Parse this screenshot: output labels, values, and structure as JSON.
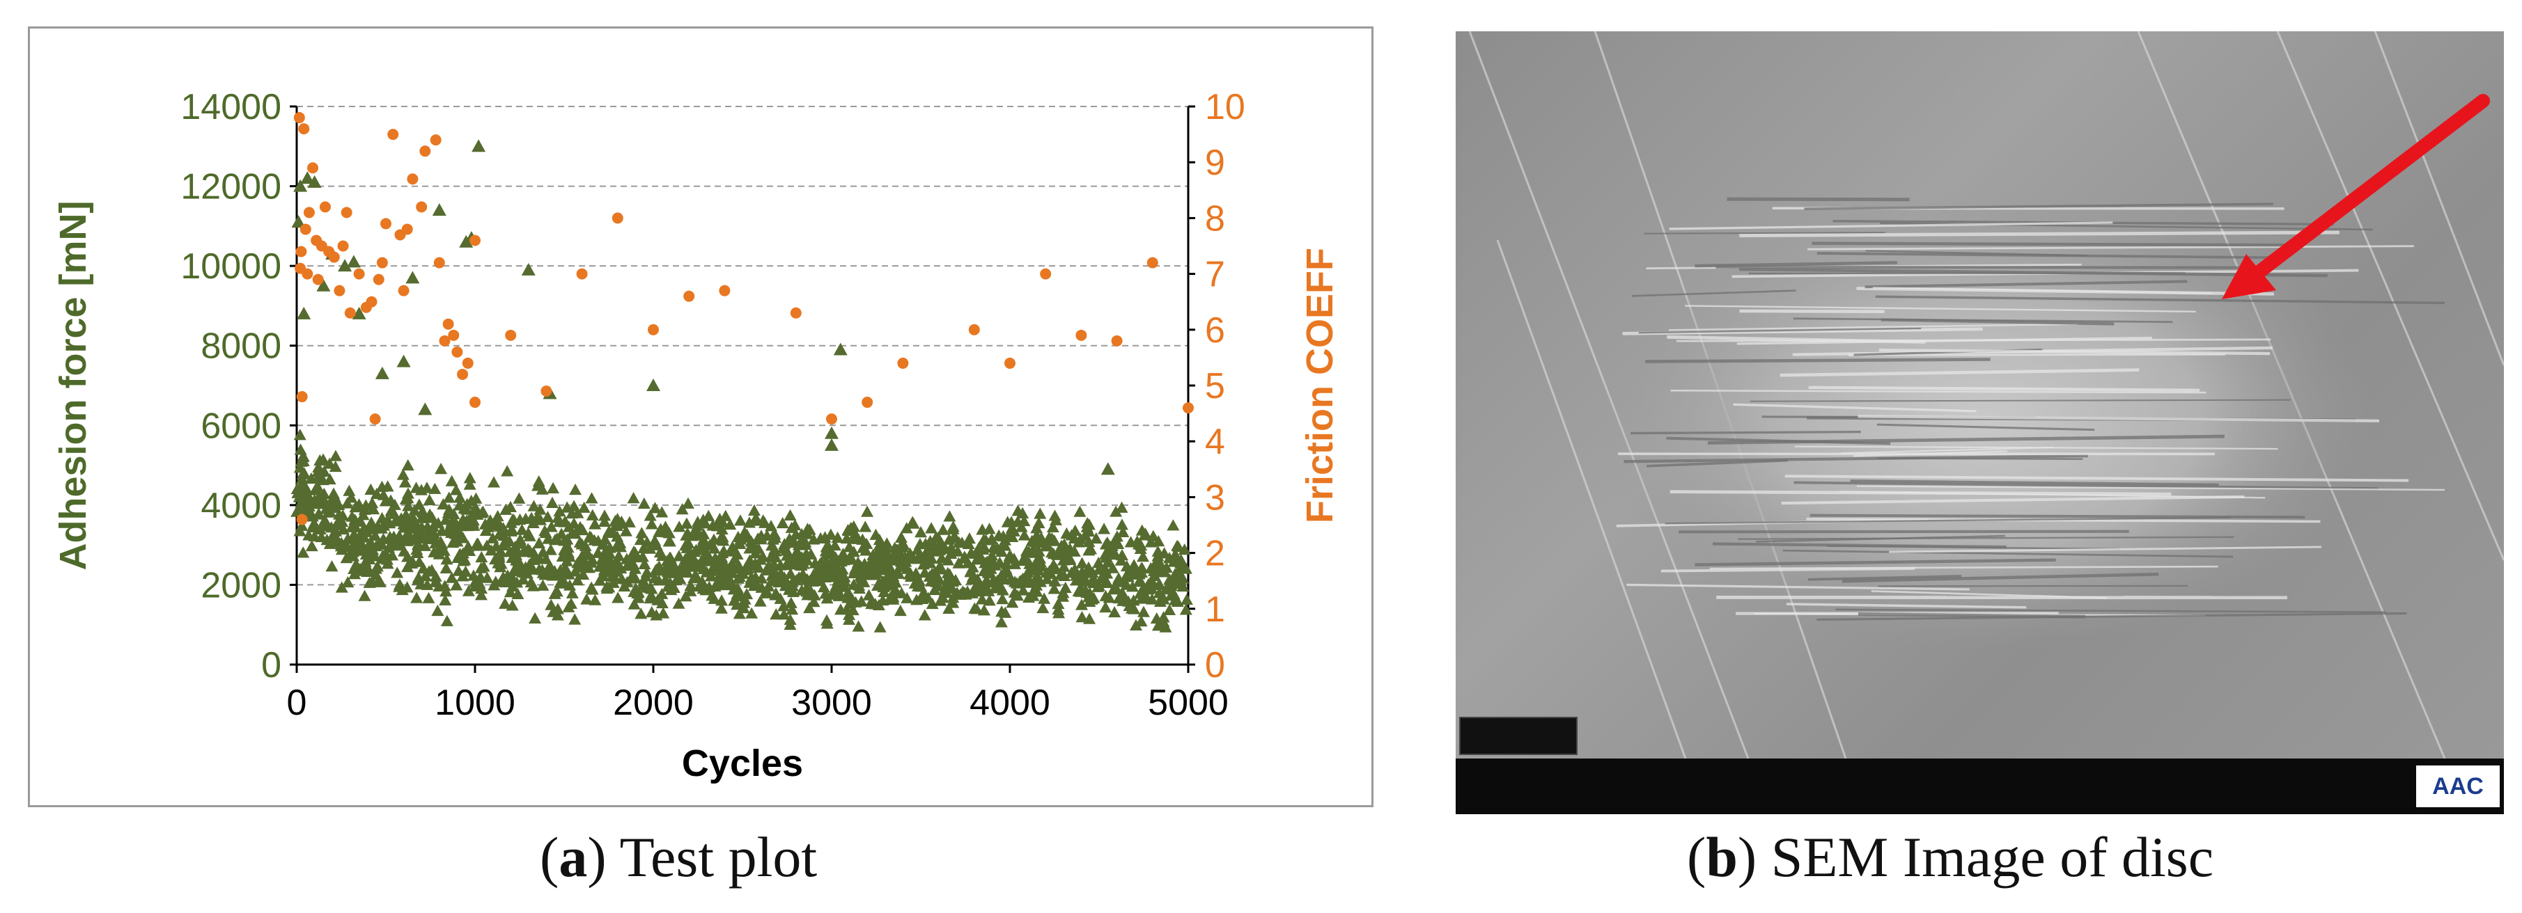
{
  "chart_data": {
    "type": "scatter",
    "xlabel": "Cycles",
    "ylabel": "Adhesion force [mN]",
    "y2label": "Friction COEFF",
    "xlim": [
      0,
      5000
    ],
    "ylim": [
      0,
      14000
    ],
    "y2lim": [
      0,
      10
    ],
    "x_ticks": [
      "0",
      "1000",
      "2000",
      "3000",
      "4000",
      "5000"
    ],
    "y_ticks": [
      "0",
      "2000",
      "4000",
      "6000",
      "8000",
      "10000",
      "12000",
      "14000"
    ],
    "y2_ticks": [
      "0",
      "1",
      "2",
      "3",
      "4",
      "5",
      "6",
      "7",
      "8",
      "9",
      "10"
    ],
    "grid": "horizontal dashed",
    "series": [
      {
        "name": "",
        "axis": "left",
        "marker": "triangle",
        "color": "#556b2f",
        "points": [
          [
            10,
            11100
          ],
          [
            20,
            12000
          ],
          [
            40,
            8800
          ],
          [
            60,
            12200
          ],
          [
            100,
            12100
          ],
          [
            150,
            9500
          ],
          [
            200,
            10300
          ],
          [
            270,
            10000
          ],
          [
            320,
            10100
          ],
          [
            350,
            8800
          ],
          [
            480,
            7300
          ],
          [
            600,
            7600
          ],
          [
            650,
            9700
          ],
          [
            720,
            6400
          ],
          [
            800,
            11400
          ],
          [
            950,
            10600
          ],
          [
            980,
            10700
          ],
          [
            1020,
            13000
          ],
          [
            1300,
            9900
          ],
          [
            1420,
            6800
          ],
          [
            2000,
            7000
          ],
          [
            3000,
            5500
          ],
          [
            3000,
            5800
          ],
          [
            3050,
            7900
          ],
          [
            4550,
            4900
          ]
        ],
        "band": [
          {
            "x": 0,
            "min": 2600,
            "max": 6500
          },
          {
            "x": 150,
            "min": 2000,
            "max": 6000
          },
          {
            "x": 300,
            "min": 1400,
            "max": 4800
          },
          {
            "x": 600,
            "min": 1000,
            "max": 5600
          },
          {
            "x": 1000,
            "min": 800,
            "max": 5200
          },
          {
            "x": 1500,
            "min": 800,
            "max": 5000
          },
          {
            "x": 2000,
            "min": 800,
            "max": 4600
          },
          {
            "x": 2500,
            "min": 800,
            "max": 4300
          },
          {
            "x": 3000,
            "min": 700,
            "max": 4000
          },
          {
            "x": 3500,
            "min": 700,
            "max": 4100
          },
          {
            "x": 4000,
            "min": 700,
            "max": 4300
          },
          {
            "x": 4500,
            "min": 600,
            "max": 4500
          },
          {
            "x": 5000,
            "min": 600,
            "max": 3500
          }
        ]
      },
      {
        "name": "",
        "axis": "right",
        "marker": "circle",
        "color": "#e87722",
        "points": [
          [
            15,
            9.8
          ],
          [
            20,
            7.1
          ],
          [
            25,
            7.4
          ],
          [
            30,
            4.8
          ],
          [
            30,
            2.6
          ],
          [
            40,
            9.6
          ],
          [
            50,
            7.8
          ],
          [
            60,
            7.0
          ],
          [
            70,
            8.1
          ],
          [
            90,
            8.9
          ],
          [
            110,
            7.6
          ],
          [
            120,
            6.9
          ],
          [
            140,
            7.5
          ],
          [
            160,
            8.2
          ],
          [
            180,
            7.4
          ],
          [
            210,
            7.3
          ],
          [
            240,
            6.7
          ],
          [
            260,
            7.5
          ],
          [
            280,
            8.1
          ],
          [
            300,
            6.3
          ],
          [
            350,
            7.0
          ],
          [
            390,
            6.4
          ],
          [
            420,
            6.5
          ],
          [
            440,
            4.4
          ],
          [
            460,
            6.9
          ],
          [
            480,
            7.2
          ],
          [
            500,
            7.9
          ],
          [
            540,
            9.5
          ],
          [
            580,
            7.7
          ],
          [
            600,
            6.7
          ],
          [
            620,
            7.8
          ],
          [
            650,
            8.7
          ],
          [
            700,
            8.2
          ],
          [
            720,
            9.2
          ],
          [
            780,
            9.4
          ],
          [
            800,
            7.2
          ],
          [
            830,
            5.8
          ],
          [
            850,
            6.1
          ],
          [
            880,
            5.9
          ],
          [
            900,
            5.6
          ],
          [
            930,
            5.2
          ],
          [
            960,
            5.4
          ],
          [
            1000,
            4.7
          ],
          [
            1000,
            7.6
          ],
          [
            1200,
            5.9
          ],
          [
            1400,
            4.9
          ],
          [
            1600,
            7.0
          ],
          [
            1800,
            8.0
          ],
          [
            2000,
            6.0
          ],
          [
            2200,
            6.6
          ],
          [
            2400,
            6.7
          ],
          [
            2800,
            6.3
          ],
          [
            3000,
            4.4
          ],
          [
            3200,
            4.7
          ],
          [
            3400,
            5.4
          ],
          [
            3800,
            6.0
          ],
          [
            4000,
            5.4
          ],
          [
            4200,
            7.0
          ],
          [
            4400,
            5.9
          ],
          [
            4600,
            5.8
          ],
          [
            4800,
            7.2
          ],
          [
            5000,
            4.6
          ]
        ]
      }
    ]
  },
  "captions": {
    "a_letter": "a",
    "a_text": " Test plot",
    "b_letter": "b",
    "b_text": " SEM Image of disc"
  },
  "sem": {
    "logo": "AAC",
    "arrow_color": "#e8141c"
  }
}
